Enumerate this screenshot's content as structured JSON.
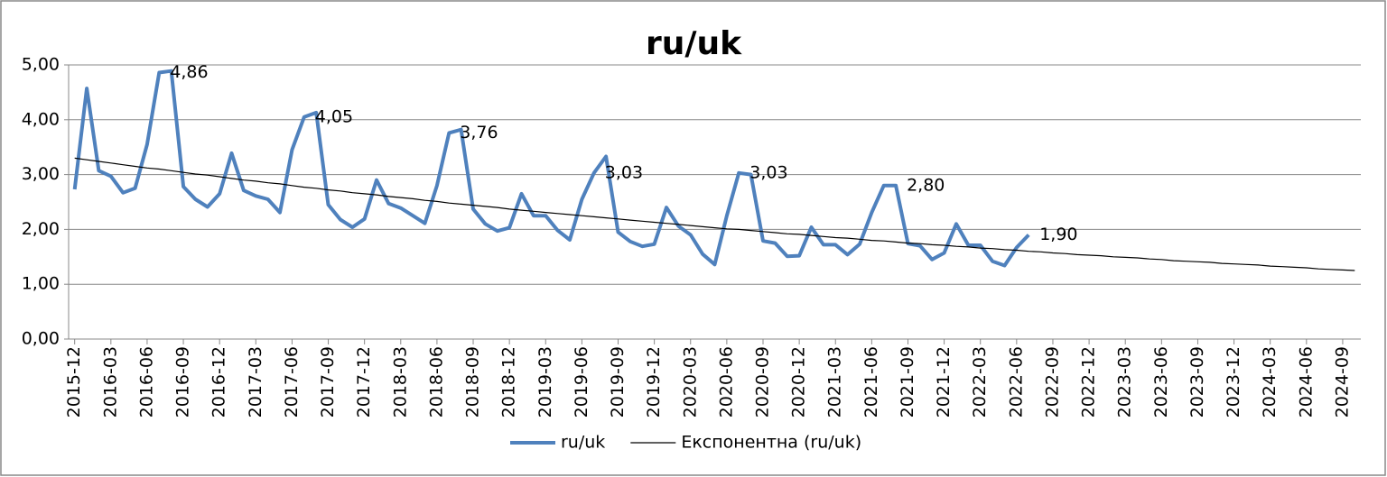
{
  "chart_data": {
    "type": "line",
    "title": "ru/uk",
    "categories": [
      "2015-12",
      null,
      null,
      "2016-03",
      null,
      null,
      "2016-06",
      null,
      null,
      "2016-09",
      null,
      null,
      "2016-12",
      null,
      null,
      "2017-03",
      null,
      null,
      "2017-06",
      null,
      null,
      "2017-09",
      null,
      null,
      "2017-12",
      null,
      null,
      "2018-03",
      null,
      null,
      "2018-06",
      null,
      null,
      "2018-09",
      null,
      null,
      "2018-12",
      null,
      null,
      "2019-03",
      null,
      null,
      "2019-06",
      null,
      null,
      "2019-09",
      null,
      null,
      "2019-12",
      null,
      null,
      "2020-03",
      null,
      null,
      "2020-06",
      null,
      null,
      "2020-09",
      null,
      null,
      "2020-12",
      null,
      null,
      "2021-03",
      null,
      null,
      "2021-06",
      null,
      null,
      "2021-09",
      null,
      null,
      "2021-12",
      null,
      null,
      "2022-03",
      null,
      null,
      "2022-06",
      null,
      null,
      "2022-09",
      null,
      null,
      "2022-12",
      null,
      null,
      "2023-03",
      null,
      null,
      "2023-06",
      null,
      null,
      "2023-09",
      null,
      null,
      "2023-12",
      null,
      null,
      "2024-03",
      null,
      null,
      "2024-06",
      null,
      null,
      "2024-09",
      null
    ],
    "series": [
      {
        "name": "ru/uk",
        "color": "#4f81bd",
        "width": 4,
        "values": [
          2.73,
          4.57,
          3.07,
          2.97,
          2.67,
          2.75,
          3.55,
          4.86,
          4.89,
          2.78,
          2.55,
          2.41,
          2.65,
          3.39,
          2.71,
          2.61,
          2.55,
          2.31,
          3.45,
          4.05,
          4.13,
          2.45,
          2.18,
          2.04,
          2.19,
          2.9,
          2.47,
          2.39,
          2.25,
          2.11,
          2.8,
          3.76,
          3.82,
          2.37,
          2.1,
          1.97,
          2.03,
          2.65,
          2.25,
          2.25,
          1.98,
          1.81,
          2.55,
          3.03,
          3.33,
          1.95,
          1.78,
          1.69,
          1.73,
          2.4,
          2.06,
          1.9,
          1.55,
          1.36,
          2.25,
          3.03,
          3.0,
          1.79,
          1.75,
          1.51,
          1.52,
          2.04,
          1.72,
          1.72,
          1.54,
          1.73,
          2.31,
          2.8,
          2.8,
          1.74,
          1.7,
          1.45,
          1.57,
          2.1,
          1.71,
          1.71,
          1.42,
          1.34,
          1.67,
          1.9,
          null,
          null,
          null,
          null,
          null,
          null,
          null,
          null,
          null,
          null,
          null,
          null,
          null,
          null,
          null,
          null,
          null,
          null,
          null,
          null,
          null,
          null,
          null,
          null,
          null,
          null,
          null
        ],
        "value_labels": [
          null,
          null,
          null,
          null,
          null,
          null,
          null,
          "4,86",
          null,
          null,
          null,
          null,
          null,
          null,
          null,
          null,
          null,
          null,
          null,
          "4,05",
          null,
          null,
          null,
          null,
          null,
          null,
          null,
          null,
          null,
          null,
          null,
          "3,76",
          null,
          null,
          null,
          null,
          null,
          null,
          null,
          null,
          null,
          null,
          null,
          "3,03",
          null,
          null,
          null,
          null,
          null,
          null,
          null,
          null,
          null,
          null,
          null,
          "3,03",
          null,
          null,
          null,
          null,
          null,
          null,
          null,
          null,
          null,
          null,
          null,
          null,
          "2,80",
          null,
          null,
          null,
          null,
          null,
          null,
          null,
          null,
          null,
          null,
          "1,90",
          null,
          null,
          null,
          null,
          null,
          null,
          null,
          null,
          null,
          null,
          null,
          null,
          null,
          null,
          null,
          null,
          null,
          null,
          null,
          null,
          null,
          null,
          null,
          null,
          null,
          null,
          null
        ]
      },
      {
        "name": "Експонентна (ru/uk)",
        "color": "#000000",
        "width": 1.2,
        "values": [
          3.3,
          3.27,
          3.24,
          3.21,
          3.18,
          3.15,
          3.12,
          3.1,
          3.07,
          3.04,
          3.01,
          2.99,
          2.96,
          2.93,
          2.9,
          2.88,
          2.85,
          2.83,
          2.8,
          2.77,
          2.75,
          2.72,
          2.7,
          2.67,
          2.65,
          2.63,
          2.6,
          2.58,
          2.56,
          2.53,
          2.51,
          2.48,
          2.46,
          2.44,
          2.42,
          2.4,
          2.37,
          2.35,
          2.33,
          2.31,
          2.29,
          2.27,
          2.25,
          2.23,
          2.21,
          2.19,
          2.17,
          2.15,
          2.13,
          2.11,
          2.09,
          2.07,
          2.05,
          2.03,
          2.01,
          2.0,
          1.98,
          1.96,
          1.94,
          1.92,
          1.91,
          1.89,
          1.87,
          1.85,
          1.84,
          1.82,
          1.8,
          1.79,
          1.77,
          1.75,
          1.74,
          1.72,
          1.71,
          1.69,
          1.68,
          1.66,
          1.65,
          1.63,
          1.62,
          1.6,
          1.59,
          1.57,
          1.56,
          1.54,
          1.53,
          1.52,
          1.5,
          1.49,
          1.48,
          1.46,
          1.45,
          1.43,
          1.42,
          1.41,
          1.4,
          1.38,
          1.37,
          1.36,
          1.35,
          1.33,
          1.32,
          1.31,
          1.3,
          1.28,
          1.27,
          1.26,
          1.25
        ]
      }
    ],
    "ylim": [
      0,
      5
    ],
    "yticks": [
      {
        "value": 0,
        "label": "0,00"
      },
      {
        "value": 1,
        "label": "1,00"
      },
      {
        "value": 2,
        "label": "2,00"
      },
      {
        "value": 3,
        "label": "3,00"
      },
      {
        "value": 4,
        "label": "4,00"
      },
      {
        "value": 5,
        "label": "5,00"
      }
    ],
    "grid": true,
    "legend": "bottom"
  }
}
